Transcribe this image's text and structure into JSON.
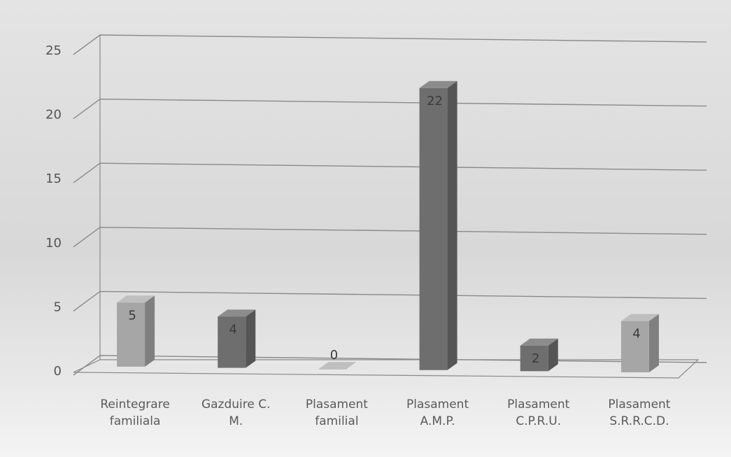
{
  "chart_data": {
    "type": "bar",
    "categories": [
      [
        "Reintegrare",
        "familiala"
      ],
      [
        "Gazduire C.",
        "M."
      ],
      [
        "Plasament",
        "familial"
      ],
      [
        "Plasament",
        "A.M.P."
      ],
      [
        "Plasament",
        "C.P.R.U."
      ],
      [
        "Plasament",
        "S.R.R.C.D."
      ]
    ],
    "values": [
      5,
      4,
      0,
      22,
      2,
      4
    ],
    "data_labels": [
      "5",
      "4",
      "0",
      "22",
      "2",
      "4"
    ],
    "yticks": [
      "0",
      "5",
      "10",
      "15",
      "20",
      "25"
    ],
    "ylim": [
      0,
      25
    ],
    "grid": true,
    "style": "3d-column",
    "colors": {
      "front": "#a6a6a6",
      "side": "#7f7f7f",
      "top": "#bfbfbf",
      "dark_front": "#6e6e6e",
      "dark_side": "#555555",
      "dark_top": "#8c8c8c"
    },
    "dark_bars": [
      1,
      3,
      4
    ]
  }
}
